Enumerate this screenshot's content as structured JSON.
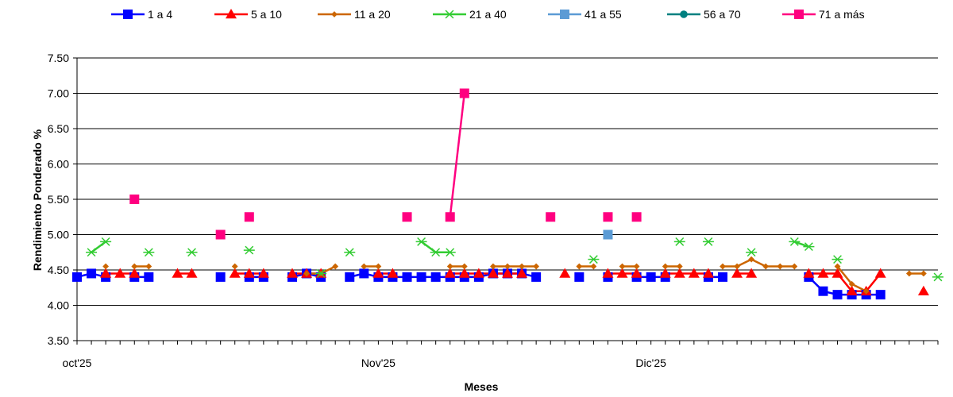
{
  "chart_data": {
    "type": "line",
    "xlabel": "Meses",
    "ylabel": "Rendimiento Ponderado %",
    "ylim": [
      3.5,
      7.5
    ],
    "yticks": [
      "3.50",
      "4.00",
      "4.50",
      "5.00",
      "5.50",
      "6.00",
      "6.50",
      "7.00",
      "7.50"
    ],
    "xlim": [
      0,
      60
    ],
    "x_tick_labels": [
      {
        "x": 0,
        "label": "oct'25"
      },
      {
        "x": 21,
        "label": "Nov'25"
      },
      {
        "x": 40,
        "label": "Dic'25"
      }
    ],
    "grid": "horizontal",
    "legend_position": "top",
    "series": [
      {
        "name": "1 a 4",
        "color": "#0000ff",
        "marker": "square",
        "points": [
          [
            0,
            4.4
          ],
          [
            1,
            4.45
          ],
          [
            2,
            4.4
          ],
          null,
          [
            4,
            4.4
          ],
          [
            5,
            4.4
          ],
          null,
          [
            10,
            4.4
          ],
          null,
          [
            12,
            4.4
          ],
          [
            13,
            4.4
          ],
          null,
          [
            15,
            4.4
          ],
          [
            16,
            4.45
          ],
          [
            17,
            4.4
          ],
          null,
          [
            19,
            4.4
          ],
          [
            20,
            4.45
          ],
          [
            21,
            4.4
          ],
          [
            22,
            4.4
          ],
          [
            23,
            4.4
          ],
          [
            24,
            4.4
          ],
          [
            25,
            4.4
          ],
          [
            26,
            4.4
          ],
          [
            27,
            4.4
          ],
          [
            28,
            4.4
          ],
          [
            29,
            4.45
          ],
          [
            30,
            4.45
          ],
          [
            31,
            4.45
          ],
          [
            32,
            4.4
          ],
          null,
          [
            35,
            4.4
          ],
          null,
          [
            37,
            4.4
          ],
          null,
          [
            39,
            4.4
          ],
          [
            40,
            4.4
          ],
          [
            41,
            4.4
          ],
          null,
          [
            44,
            4.4
          ],
          [
            45,
            4.4
          ],
          null,
          [
            51,
            4.4
          ],
          [
            52,
            4.2
          ],
          [
            53,
            4.15
          ],
          [
            54,
            4.15
          ],
          [
            55,
            4.15
          ],
          [
            56,
            4.15
          ]
        ]
      },
      {
        "name": "5 a 10",
        "color": "#ff0000",
        "marker": "triangle",
        "points": [
          [
            2,
            4.45
          ],
          [
            3,
            4.45
          ],
          [
            4,
            4.45
          ],
          null,
          [
            7,
            4.45
          ],
          [
            8,
            4.45
          ],
          null,
          [
            11,
            4.45
          ],
          [
            12,
            4.45
          ],
          [
            13,
            4.45
          ],
          null,
          [
            15,
            4.45
          ],
          [
            16,
            4.45
          ],
          [
            17,
            4.45
          ],
          null,
          [
            21,
            4.45
          ],
          [
            22,
            4.45
          ],
          null,
          [
            26,
            4.45
          ],
          [
            27,
            4.45
          ],
          [
            28,
            4.45
          ],
          [
            29,
            4.45
          ],
          [
            30,
            4.45
          ],
          [
            31,
            4.45
          ],
          null,
          [
            34,
            4.45
          ],
          null,
          [
            37,
            4.45
          ],
          [
            38,
            4.45
          ],
          [
            39,
            4.45
          ],
          null,
          [
            41,
            4.45
          ],
          [
            42,
            4.45
          ],
          [
            43,
            4.45
          ],
          [
            44,
            4.45
          ],
          null,
          [
            46,
            4.45
          ],
          [
            47,
            4.45
          ],
          null,
          [
            51,
            4.45
          ],
          [
            52,
            4.45
          ],
          [
            53,
            4.45
          ],
          [
            54,
            4.2
          ],
          [
            55,
            4.2
          ],
          [
            56,
            4.45
          ],
          null,
          [
            59,
            4.2
          ]
        ]
      },
      {
        "name": "11 a 20",
        "color": "#cc6600",
        "marker": "diamond",
        "points": [
          [
            2,
            4.55
          ],
          null,
          [
            4,
            4.55
          ],
          [
            5,
            4.55
          ],
          null,
          [
            11,
            4.55
          ],
          null,
          [
            16,
            4.45
          ],
          [
            17,
            4.45
          ],
          [
            18,
            4.55
          ],
          null,
          [
            20,
            4.55
          ],
          [
            21,
            4.55
          ],
          null,
          [
            26,
            4.55
          ],
          [
            27,
            4.55
          ],
          null,
          [
            29,
            4.55
          ],
          [
            30,
            4.55
          ],
          [
            31,
            4.55
          ],
          [
            32,
            4.55
          ],
          null,
          [
            35,
            4.55
          ],
          [
            36,
            4.55
          ],
          null,
          [
            38,
            4.55
          ],
          [
            39,
            4.55
          ],
          null,
          [
            41,
            4.55
          ],
          [
            42,
            4.55
          ],
          null,
          [
            45,
            4.55
          ],
          [
            46,
            4.55
          ],
          [
            47,
            4.65
          ],
          [
            48,
            4.55
          ],
          [
            49,
            4.55
          ],
          [
            50,
            4.55
          ],
          null,
          [
            53,
            4.55
          ],
          [
            54,
            4.3
          ],
          [
            55,
            4.2
          ],
          null,
          [
            58,
            4.45
          ],
          [
            59,
            4.45
          ]
        ]
      },
      {
        "name": "21 a 40",
        "color": "#33cc33",
        "marker": "star",
        "points": [
          [
            1,
            4.75
          ],
          [
            2,
            4.9
          ],
          null,
          [
            5,
            4.75
          ],
          null,
          [
            8,
            4.75
          ],
          null,
          [
            12,
            4.78
          ],
          null,
          [
            17,
            4.45
          ],
          null,
          [
            19,
            4.75
          ],
          null,
          [
            24,
            4.9
          ],
          [
            25,
            4.75
          ],
          [
            26,
            4.75
          ],
          null,
          [
            36,
            4.65
          ],
          null,
          [
            42,
            4.9
          ],
          null,
          [
            44,
            4.9
          ],
          null,
          [
            47,
            4.75
          ],
          null,
          [
            50,
            4.9
          ],
          [
            51,
            4.83
          ],
          null,
          [
            53,
            4.65
          ],
          null,
          [
            60,
            4.4
          ]
        ]
      },
      {
        "name": "41 a 55",
        "color": "#5b9bd5",
        "marker": "square",
        "points": [
          [
            37,
            5.0
          ]
        ]
      },
      {
        "name": "56 a 70",
        "color": "#008080",
        "marker": "circle",
        "points": []
      },
      {
        "name": "71 a más",
        "color": "#ff0080",
        "marker": "square",
        "points": [
          [
            4,
            5.5
          ],
          null,
          [
            10,
            5.0
          ],
          null,
          [
            12,
            5.25
          ],
          null,
          [
            23,
            5.25
          ],
          null,
          [
            26,
            5.25
          ],
          [
            27,
            7.0
          ],
          null,
          [
            33,
            5.25
          ],
          null,
          [
            37,
            5.25
          ],
          null,
          [
            39,
            5.25
          ]
        ]
      }
    ]
  }
}
